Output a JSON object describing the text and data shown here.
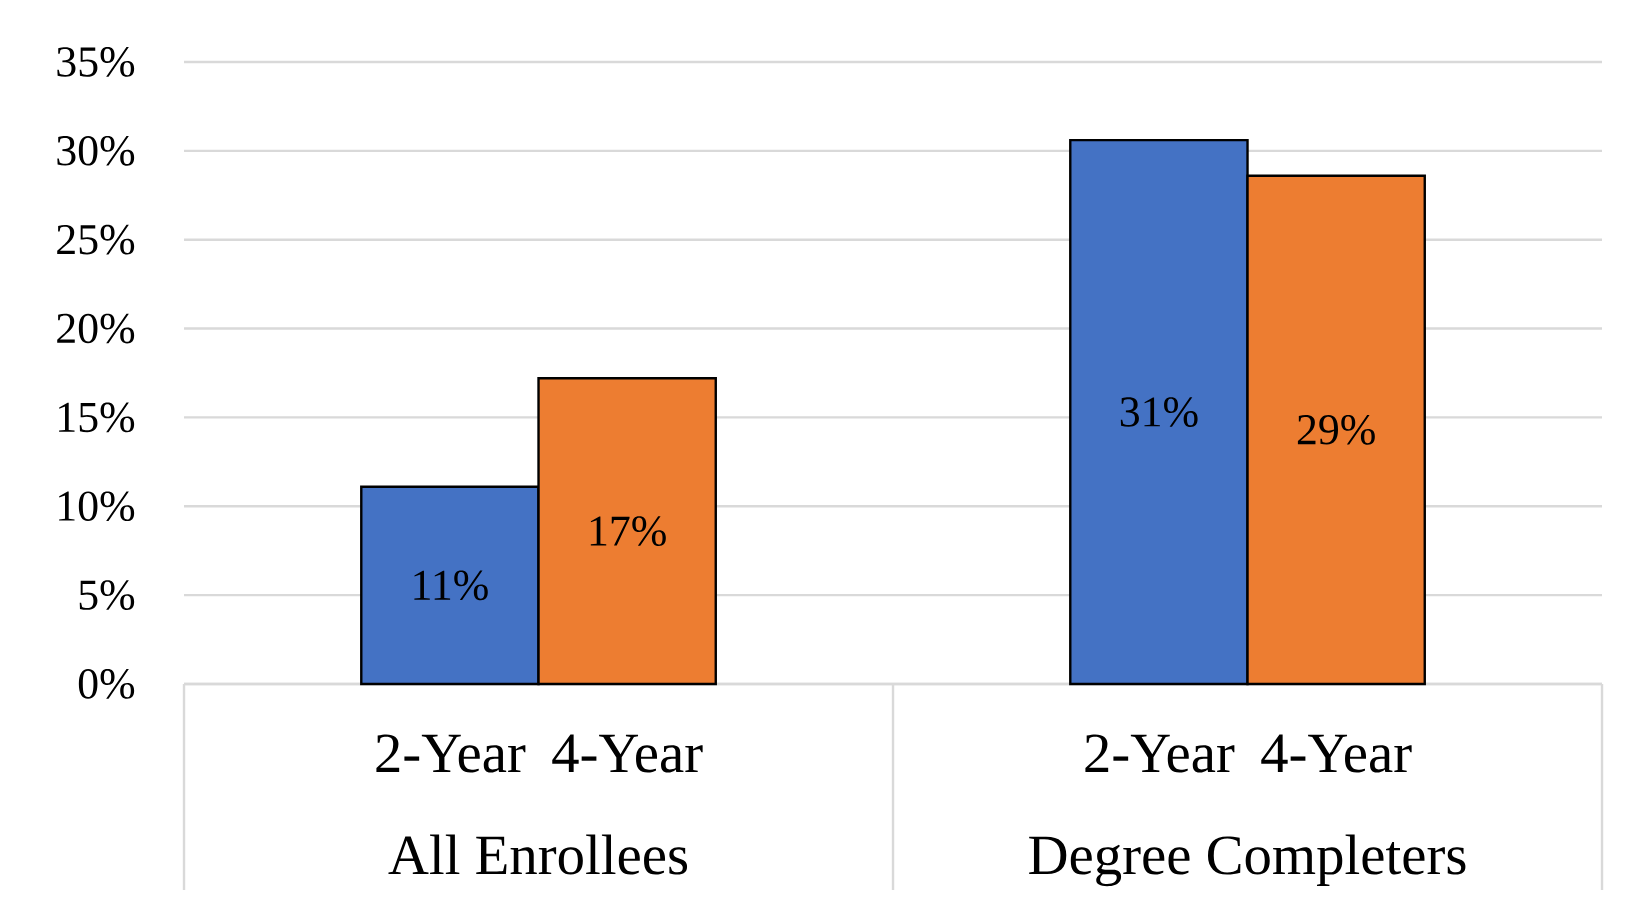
{
  "chart_data": {
    "type": "bar",
    "categories": [
      "All Enrollees",
      "Degree Completers"
    ],
    "series": [
      {
        "name": "2-Year",
        "color": "#4472c4",
        "values": [
          11.1,
          30.6
        ],
        "value_labels": [
          "11%",
          "31%"
        ]
      },
      {
        "name": "4-Year",
        "color": "#ed7d31",
        "values": [
          17.2,
          28.6
        ],
        "value_labels": [
          "17%",
          "29%"
        ]
      }
    ],
    "ylim": [
      0,
      35
    ],
    "yticks": [
      {
        "value": 0,
        "label": "0%"
      },
      {
        "value": 5,
        "label": "5%"
      },
      {
        "value": 10,
        "label": "10%"
      },
      {
        "value": 15,
        "label": "15%"
      },
      {
        "value": 20,
        "label": "20%"
      },
      {
        "value": 25,
        "label": "25%"
      },
      {
        "value": 30,
        "label": "30%"
      },
      {
        "value": 35,
        "label": "35%"
      }
    ],
    "grid": "y",
    "legend": false
  }
}
